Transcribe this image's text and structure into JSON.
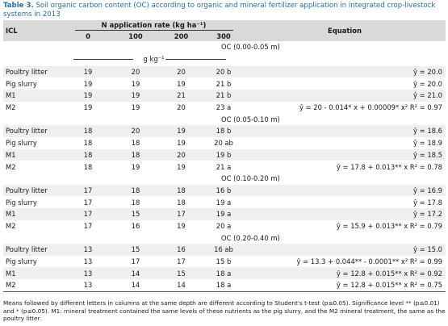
{
  "caption": {
    "label": "Table 3.",
    "text": "Soil organic carbon content (OC) according to organic and mineral fertilizer application in integrated crop-livestock systems in 2013"
  },
  "header": {
    "icl": "ICL",
    "n_rate": "N application rate (kg ha⁻¹)",
    "rates": [
      "0",
      "100",
      "200",
      "300"
    ],
    "equation": "Equation"
  },
  "unit": "g kg⁻¹",
  "sections": [
    {
      "title": "OC (0.00-0.05 m)",
      "rows": [
        {
          "icl": "Poultry litter",
          "v0": "19",
          "v100": "20",
          "v200": "20",
          "v300": "20 b",
          "eq": "ŷ = 20.0"
        },
        {
          "icl": "Pig slurry",
          "v0": "19",
          "v100": "19",
          "v200": "19",
          "v300": "21 b",
          "eq": "ŷ = 20.0"
        },
        {
          "icl": "M1",
          "v0": "19",
          "v100": "19",
          "v200": "21",
          "v300": "21 b",
          "eq": "ŷ = 21.0"
        },
        {
          "icl": "M2",
          "v0": "19",
          "v100": "19",
          "v200": "20",
          "v300": "23 a",
          "eq": "ŷ = 20 - 0.014* x + 0.00009* x²  R² = 0.97"
        }
      ]
    },
    {
      "title": "OC (0.05-0.10 m)",
      "rows": [
        {
          "icl": "Poultry litter",
          "v0": "18",
          "v100": "20",
          "v200": "19",
          "v300": "18 b",
          "eq": "ŷ = 18.6"
        },
        {
          "icl": "Pig slurry",
          "v0": "18",
          "v100": "18",
          "v200": "19",
          "v300": "20 ab",
          "eq": "ŷ = 18.9"
        },
        {
          "icl": "M1",
          "v0": "18",
          "v100": "18",
          "v200": "20",
          "v300": "19 b",
          "eq": "ŷ = 18.5"
        },
        {
          "icl": "M2",
          "v0": "18",
          "v100": "19",
          "v200": "19",
          "v300": "21 a",
          "eq": "ŷ = 17.8 + 0.013** x  R² = 0.78"
        }
      ]
    },
    {
      "title": "OC (0.10-0.20 m)",
      "rows": [
        {
          "icl": "Poultry litter",
          "v0": "17",
          "v100": "18",
          "v200": "18",
          "v300": "16 b",
          "eq": "ŷ = 16.9"
        },
        {
          "icl": "Pig slurry",
          "v0": "17",
          "v100": "18",
          "v200": "18",
          "v300": "19 a",
          "eq": "ŷ = 17.8"
        },
        {
          "icl": "M1",
          "v0": "17",
          "v100": "15",
          "v200": "17",
          "v300": "19 a",
          "eq": "ŷ = 17.2"
        },
        {
          "icl": "M2",
          "v0": "17",
          "v100": "16",
          "v200": "19",
          "v300": "20 a",
          "eq": "ŷ = 15.9 + 0.013** x  R² = 0.79"
        }
      ]
    },
    {
      "title": "OC (0.20-0.40 m)",
      "rows": [
        {
          "icl": "Poultry litter",
          "v0": "13",
          "v100": "15",
          "v200": "16",
          "v300": "16 ab",
          "eq": "ŷ = 15.0"
        },
        {
          "icl": "Pig slurry",
          "v0": "13",
          "v100": "17",
          "v200": "17",
          "v300": "15 b",
          "eq": "ŷ = 13.3 + 0.044** - 0.0001** x²  R² = 0.99"
        },
        {
          "icl": "M1",
          "v0": "13",
          "v100": "14",
          "v200": "15",
          "v300": "18 a",
          "eq": "ŷ = 12.8 + 0.015** x  R² = 0.92"
        },
        {
          "icl": "M2",
          "v0": "13",
          "v100": "14",
          "v200": "14",
          "v300": "18 a",
          "eq": "ŷ = 12.8 + 0.015** x  R² = 0.75"
        }
      ]
    }
  ],
  "footnote": "Means followed by different letters in columns at the same depth are different according to Student's t-test (p≤0.05). Significance level ** (p≤0.01) and * (p≤0.05). M1: mineral treatment contained the same levels of these nutrients as the pig slurry, and the M2 mineral treatment, the same as the poultry litter."
}
